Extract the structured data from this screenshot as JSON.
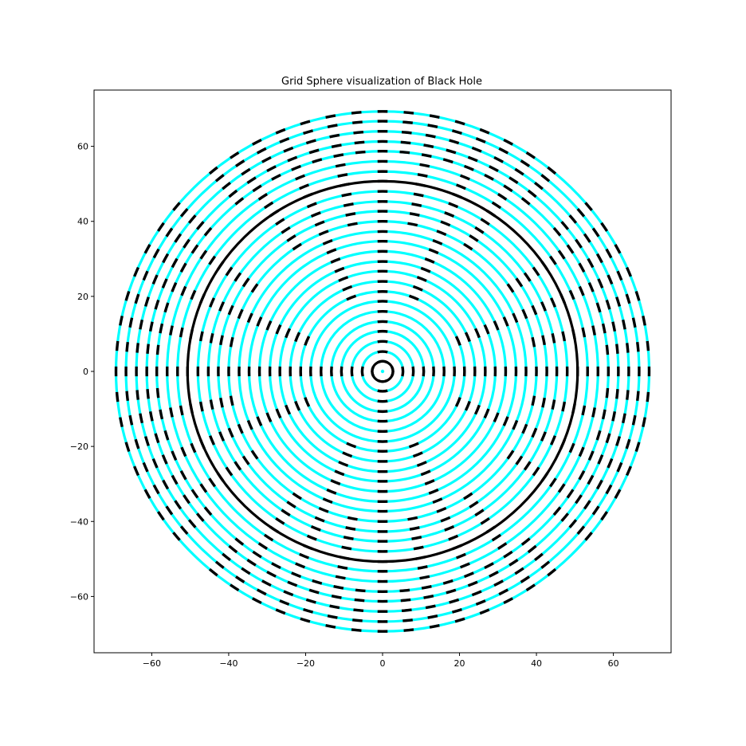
{
  "chart_data": {
    "type": "scatter",
    "title": "Grid Sphere visualization of Black Hole",
    "xlabel": "",
    "ylabel": "",
    "xlim": [
      -75,
      75
    ],
    "ylim": [
      -75,
      75
    ],
    "xticks": [
      -60,
      -40,
      -20,
      0,
      20,
      40,
      60
    ],
    "yticks": [
      -60,
      -40,
      -20,
      0,
      20,
      40,
      60
    ],
    "xtick_labels": [
      "−60",
      "−40",
      "−20",
      "0",
      "20",
      "40",
      "60"
    ],
    "ytick_labels": [
      "−60",
      "−40",
      "−20",
      "0",
      "20",
      "40",
      "60"
    ],
    "grid": false,
    "legend": "none",
    "center_point": [
      0,
      0
    ],
    "rings": {
      "radii": [
        2.7,
        5.3,
        8.0,
        10.7,
        13.3,
        16.0,
        18.7,
        21.3,
        24.0,
        26.7,
        29.3,
        32.0,
        34.7,
        37.3,
        40.0,
        42.7,
        45.3,
        48.0,
        50.7,
        53.3,
        56.0,
        58.7,
        61.3,
        64.0,
        66.7,
        69.3
      ],
      "horizon_radius": 2.7,
      "photon_radius": 50.7
    },
    "colors": {
      "ring": "#00ffff",
      "grid_line": "#000000",
      "center_point": "#00ffff"
    }
  }
}
